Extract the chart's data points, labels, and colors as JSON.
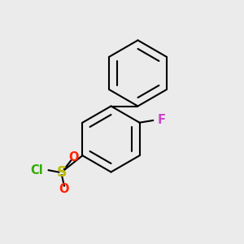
{
  "bg_color": "#ebebeb",
  "bond_color": "#000000",
  "bond_width": 1.5,
  "F_color": "#cc44cc",
  "F_label": "F",
  "Cl_color": "#33aa00",
  "Cl_label": "Cl",
  "S_color": "#bbbb00",
  "S_label": "S",
  "O_color": "#ff2200",
  "O_label": "O",
  "font_size": 10.5,
  "inner_ratio": 0.74
}
